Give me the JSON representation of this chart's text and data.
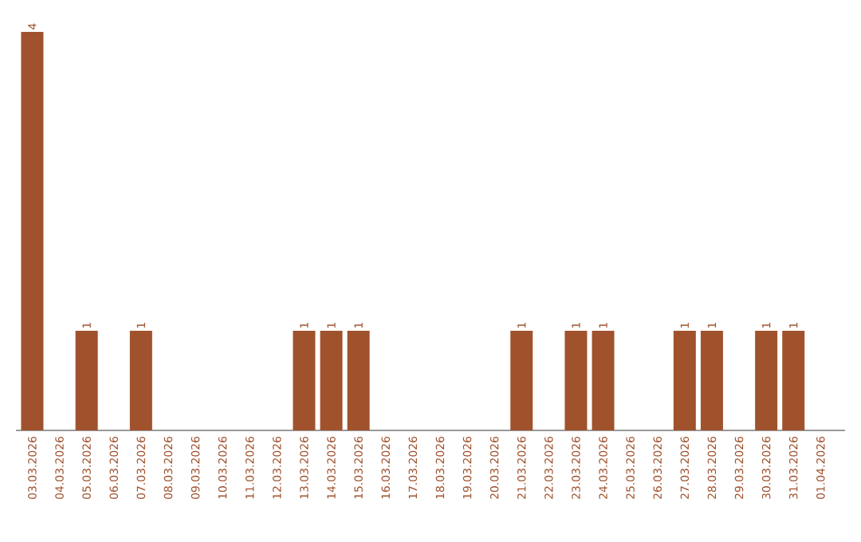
{
  "chart_data": {
    "type": "bar",
    "categories": [
      "03.03.2026",
      "04.03.2026",
      "05.03.2026",
      "06.03.2026",
      "07.03.2026",
      "08.03.2026",
      "09.03.2026",
      "10.03.2026",
      "11.03.2026",
      "12.03.2026",
      "13.03.2026",
      "14.03.2026",
      "15.03.2026",
      "16.03.2026",
      "17.03.2026",
      "18.03.2026",
      "19.03.2026",
      "20.03.2026",
      "21.03.2026",
      "22.03.2026",
      "23.03.2026",
      "24.03.2026",
      "25.03.2026",
      "26.03.2026",
      "27.03.2026",
      "28.03.2026",
      "29.03.2026",
      "30.03.2026",
      "31.03.2026",
      "01.04.2026"
    ],
    "values": [
      4,
      0,
      1,
      0,
      1,
      0,
      0,
      0,
      0,
      0,
      1,
      1,
      1,
      0,
      0,
      0,
      0,
      0,
      1,
      0,
      1,
      1,
      0,
      0,
      1,
      1,
      0,
      1,
      1,
      0
    ],
    "value_labels": [
      "4",
      null,
      "1",
      null,
      "1",
      null,
      null,
      null,
      null,
      null,
      "1",
      "1",
      "1",
      null,
      null,
      null,
      null,
      null,
      "1",
      null,
      "1",
      "1",
      null,
      null,
      "1",
      "1",
      null,
      "1",
      "1",
      null
    ],
    "color": "#a0522d"
  }
}
